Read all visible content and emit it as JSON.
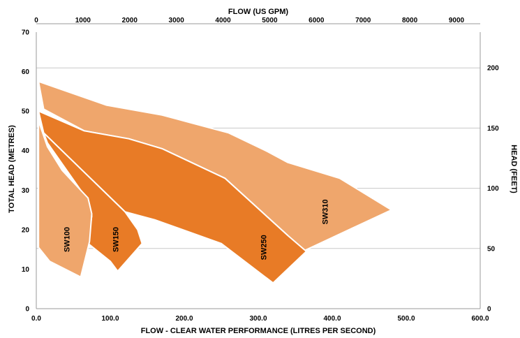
{
  "colors": {
    "light": "#efa66c",
    "dark": "#e87b26",
    "grid": "#c8c8c8",
    "outline": "#ffffff"
  },
  "chart_data": {
    "type": "area",
    "title": "",
    "x_axis": {
      "label": "FLOW - CLEAR WATER PERFORMANCE (LITRES PER SECOND)",
      "range": [
        0,
        600
      ],
      "ticks": [
        "0.0",
        "100.0",
        "200.0",
        "300.0",
        "400.0",
        "500.0",
        "600.0"
      ]
    },
    "x2_axis": {
      "label": "FLOW (US GPM)",
      "range": [
        0,
        9509
      ],
      "ticks": [
        "0",
        "1000",
        "2000",
        "3000",
        "4000",
        "5000",
        "6000",
        "7000",
        "8000",
        "9000"
      ]
    },
    "y_axis": {
      "label": "TOTAL HEAD (METRES)",
      "range": [
        0,
        70
      ],
      "ticks": [
        "0",
        "10",
        "20",
        "30",
        "40",
        "50",
        "60",
        "70"
      ]
    },
    "y2_axis": {
      "label": "HEAD (FEET)",
      "range": [
        0,
        229.7
      ],
      "ticks": [
        "0",
        "50",
        "100",
        "150",
        "200"
      ]
    },
    "grid": true,
    "series": [
      {
        "name": "SW310",
        "shade": "light",
        "points": [
          [
            3,
            57.5
          ],
          [
            95,
            51.5
          ],
          [
            170,
            49
          ],
          [
            210,
            47
          ],
          [
            260,
            44.5
          ],
          [
            310,
            40
          ],
          [
            340,
            37
          ],
          [
            410,
            33
          ],
          [
            480,
            25
          ],
          [
            360,
            14.5
          ],
          [
            340,
            18.5
          ],
          [
            255,
            33
          ],
          [
            170,
            40.5
          ],
          [
            125,
            43
          ],
          [
            65,
            45
          ],
          [
            10,
            50.5
          ]
        ]
      },
      {
        "name": "SW250",
        "shade": "dark",
        "points": [
          [
            3,
            50
          ],
          [
            65,
            45
          ],
          [
            125,
            43
          ],
          [
            170,
            40.5
          ],
          [
            255,
            33
          ],
          [
            340,
            18.5
          ],
          [
            365,
            14.5
          ],
          [
            320,
            6.5
          ],
          [
            250,
            16.5
          ],
          [
            160,
            22.5
          ],
          [
            120,
            24.5
          ],
          [
            10,
            44.5
          ]
        ]
      },
      {
        "name": "SW150",
        "shade": "dark",
        "points": [
          [
            10,
            44.5
          ],
          [
            120,
            24.5
          ],
          [
            137,
            20
          ],
          [
            143,
            16.5
          ],
          [
            110,
            9.5
          ],
          [
            100,
            12
          ],
          [
            70,
            16.5
          ],
          [
            75,
            23.5
          ],
          [
            60,
            30
          ],
          [
            15,
            42
          ]
        ]
      },
      {
        "name": "SW100",
        "shade": "light",
        "points": [
          [
            3,
            47.5
          ],
          [
            15,
            41
          ],
          [
            35,
            35
          ],
          [
            70,
            28
          ],
          [
            75,
            24
          ],
          [
            72,
            17
          ],
          [
            60,
            8
          ],
          [
            18,
            12
          ],
          [
            3,
            15.5
          ]
        ]
      }
    ],
    "labels": [
      {
        "text": "SW100",
        "x": 45,
        "y": 17.5
      },
      {
        "text": "SW150",
        "x": 111,
        "y": 17.5
      },
      {
        "text": "SW250",
        "x": 311,
        "y": 15.5
      },
      {
        "text": "SW310",
        "x": 394,
        "y": 24.5
      }
    ]
  }
}
